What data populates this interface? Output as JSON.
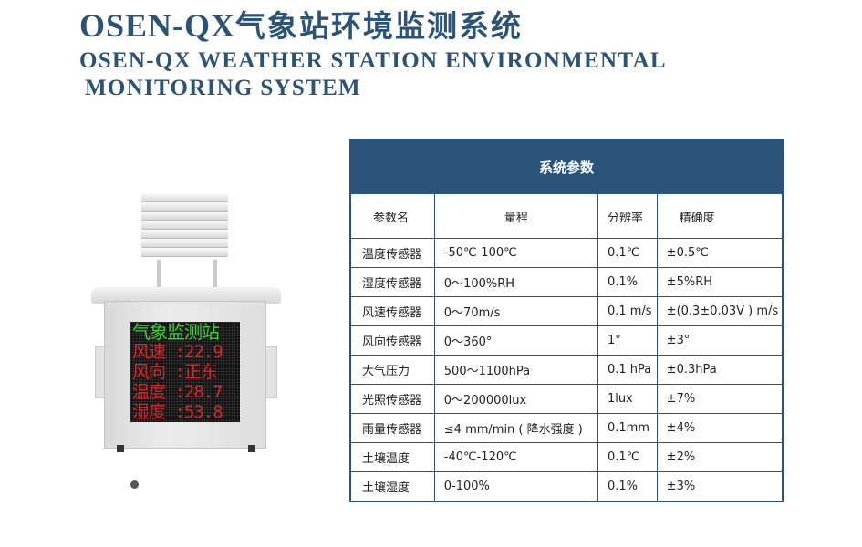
{
  "title": {
    "prefix": "OSEN-QX",
    "cn": "气象站环境监测系统"
  },
  "subtitle": {
    "line1": "OSEN-QX WEATHER STATION ENVIRONMENTAL",
    "line2": "MONITORING SYSTEM"
  },
  "device": {
    "led_lines": [
      {
        "text": "气象监测站",
        "color": "#3fce3a"
      },
      {
        "text": "风速 :22.9",
        "color": "#d8262a"
      },
      {
        "text": "风向 :正东",
        "color": "#d8262a"
      },
      {
        "text": "温度 :28.7",
        "color": "#d8262a"
      },
      {
        "text": "湿度 :53.8",
        "color": "#d8262a"
      }
    ]
  },
  "table": {
    "title": "系统参数",
    "headers": [
      "参数名",
      "量程",
      "分辨率",
      "精确度"
    ],
    "rows": [
      [
        "温度传感器",
        "-50℃-100℃",
        "0.1℃",
        "±0.5℃"
      ],
      [
        "湿度传感器",
        "0～100%RH",
        "0.1%",
        "±5%RH"
      ],
      [
        "风速传感器",
        "0～70m/s",
        "0.1 m/s",
        "±(0.3±0.03V ) m/s"
      ],
      [
        "风向传感器",
        "0～360°",
        "1°",
        "±3°"
      ],
      [
        "大气压力",
        "500～1100hPa",
        "0.1 hPa",
        "±0.3hPa"
      ],
      [
        "光照传感器",
        "0～200000lux",
        "1lux",
        "±7%"
      ],
      [
        "雨量传感器",
        "≤4 mm/min ( 降水强度 )",
        "0.1mm",
        "±4%"
      ],
      [
        "土壤温度",
        "-40℃-120℃",
        "0.1℃",
        "±2%"
      ],
      [
        "土壤湿度",
        "0-100%",
        "0.1%",
        "±3%"
      ]
    ]
  },
  "colors": {
    "brand": "#2b5378",
    "table_header": "#2a547a"
  }
}
